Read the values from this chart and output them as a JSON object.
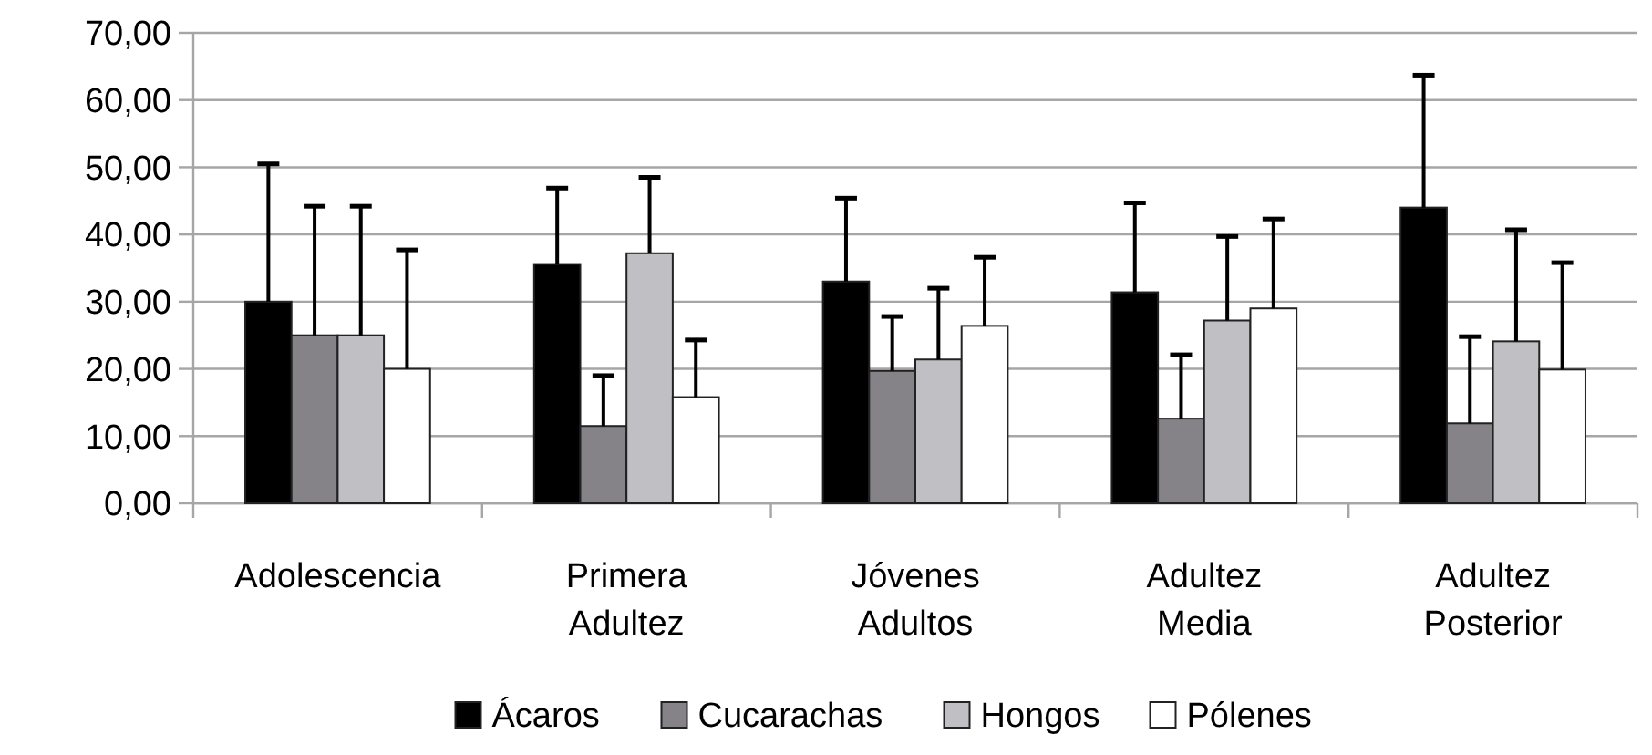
{
  "chart_data": {
    "type": "bar",
    "categories": [
      "Adolescencia",
      "Primera Adultez",
      "Jóvenes Adultos",
      "Adultez Media",
      "Adultez Posterior"
    ],
    "series": [
      {
        "name": "Ácaros",
        "color": "#000000",
        "values": [
          30,
          35.6,
          33,
          31.4,
          44
        ],
        "errors": [
          [
            30,
            50.5
          ],
          [
            35.6,
            46.9
          ],
          [
            33,
            45.4
          ],
          [
            31.4,
            44.7
          ],
          [
            44,
            63.7
          ]
        ]
      },
      {
        "name": "Cucarachas",
        "color": "#858387",
        "values": [
          25,
          11.5,
          19.7,
          12.6,
          11.9
        ],
        "errors": [
          [
            25,
            44.2
          ],
          [
            11.5,
            19
          ],
          [
            19.7,
            27.8
          ],
          [
            12.6,
            22.1
          ],
          [
            11.9,
            24.8
          ]
        ]
      },
      {
        "name": "Hongos",
        "color": "#c0bfc4",
        "values": [
          25,
          37.2,
          21.4,
          27.2,
          24.1
        ],
        "errors": [
          [
            25,
            44.2
          ],
          [
            37.2,
            48.5
          ],
          [
            21.4,
            32
          ],
          [
            27.2,
            39.7
          ],
          [
            24.1,
            40.7
          ]
        ]
      },
      {
        "name": "Pólenes",
        "color": "#ffffff",
        "values": [
          20,
          15.8,
          26.4,
          29,
          19.9
        ],
        "errors": [
          [
            20,
            37.7
          ],
          [
            15.8,
            24.3
          ],
          [
            26.4,
            36.6
          ],
          [
            29,
            42.3
          ],
          [
            19.9,
            35.8
          ]
        ]
      }
    ],
    "ylim": [
      0,
      70
    ],
    "yticks": [
      {
        "value": 0,
        "label": "0,00"
      },
      {
        "value": 10,
        "label": "10,00"
      },
      {
        "value": 20,
        "label": "20,00"
      },
      {
        "value": 30,
        "label": "30,00"
      },
      {
        "value": 40,
        "label": "40,00"
      },
      {
        "value": 50,
        "label": "50,00"
      },
      {
        "value": 60,
        "label": "60,00"
      },
      {
        "value": 70,
        "label": "70,00"
      }
    ],
    "grid": "y",
    "legend": "bottom"
  }
}
